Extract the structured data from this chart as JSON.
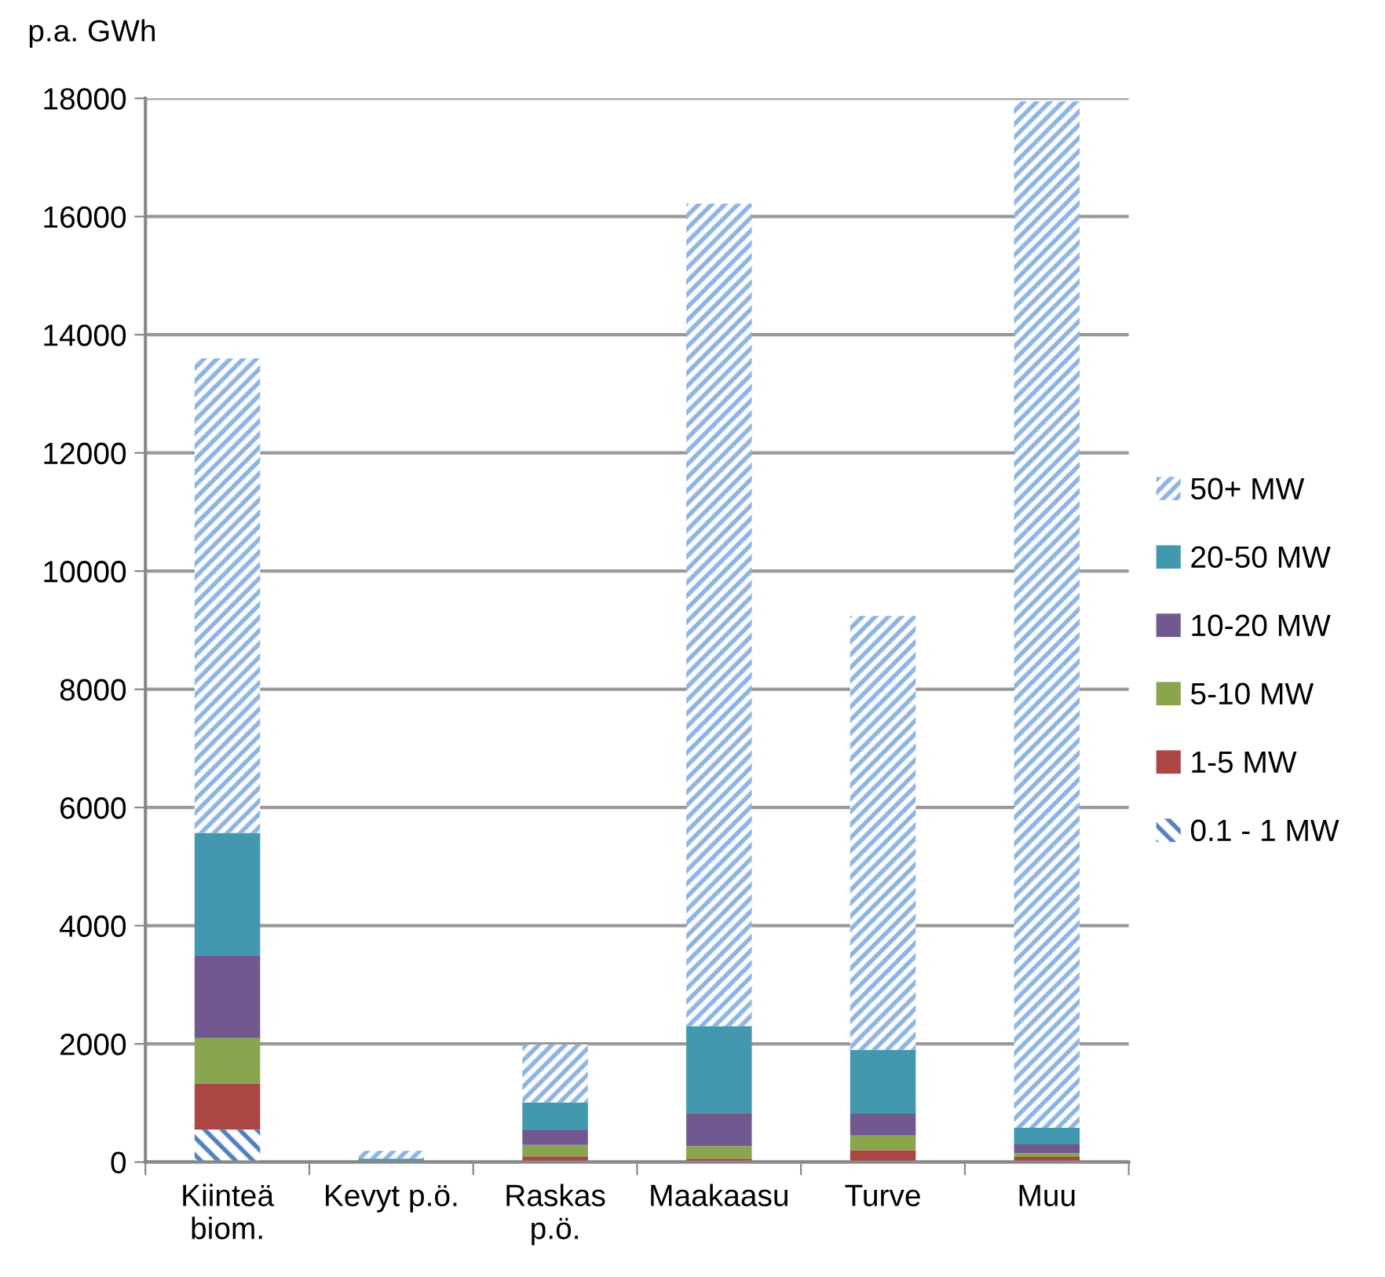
{
  "chart_data": {
    "type": "bar",
    "stacked": true,
    "ylabel": "p.a. GWh",
    "categories": [
      "Kiinteä\nbiom.",
      "Kevyt p.ö.",
      "Raskas\np.ö.",
      "Maakaasu",
      "Turve",
      "Muu"
    ],
    "series": [
      {
        "name": "0.1 - 1 MW",
        "color": "#4f81bd",
        "values": [
          550,
          0,
          0,
          0,
          0,
          0
        ]
      },
      {
        "name": "1-5 MW",
        "color": "#aa4643",
        "values": [
          780,
          0,
          100,
          60,
          200,
          90
        ]
      },
      {
        "name": "5-10 MW",
        "color": "#89a54e",
        "values": [
          770,
          0,
          190,
          210,
          250,
          60
        ]
      },
      {
        "name": "10-20 MW",
        "color": "#71588f",
        "values": [
          1400,
          0,
          250,
          560,
          370,
          150
        ]
      },
      {
        "name": "20-50 MW",
        "color": "#4198af",
        "values": [
          2070,
          60,
          470,
          1470,
          1080,
          280
        ]
      },
      {
        "name": "50+ MW",
        "color": "#8eb4e3",
        "values": [
          8030,
          130,
          980,
          13920,
          7340,
          17370
        ]
      }
    ],
    "ylim": [
      0,
      18000
    ],
    "yticks": [
      0,
      2000,
      4000,
      6000,
      8000,
      10000,
      12000,
      14000,
      16000,
      18000
    ],
    "grid": "y",
    "legend": "right"
  }
}
